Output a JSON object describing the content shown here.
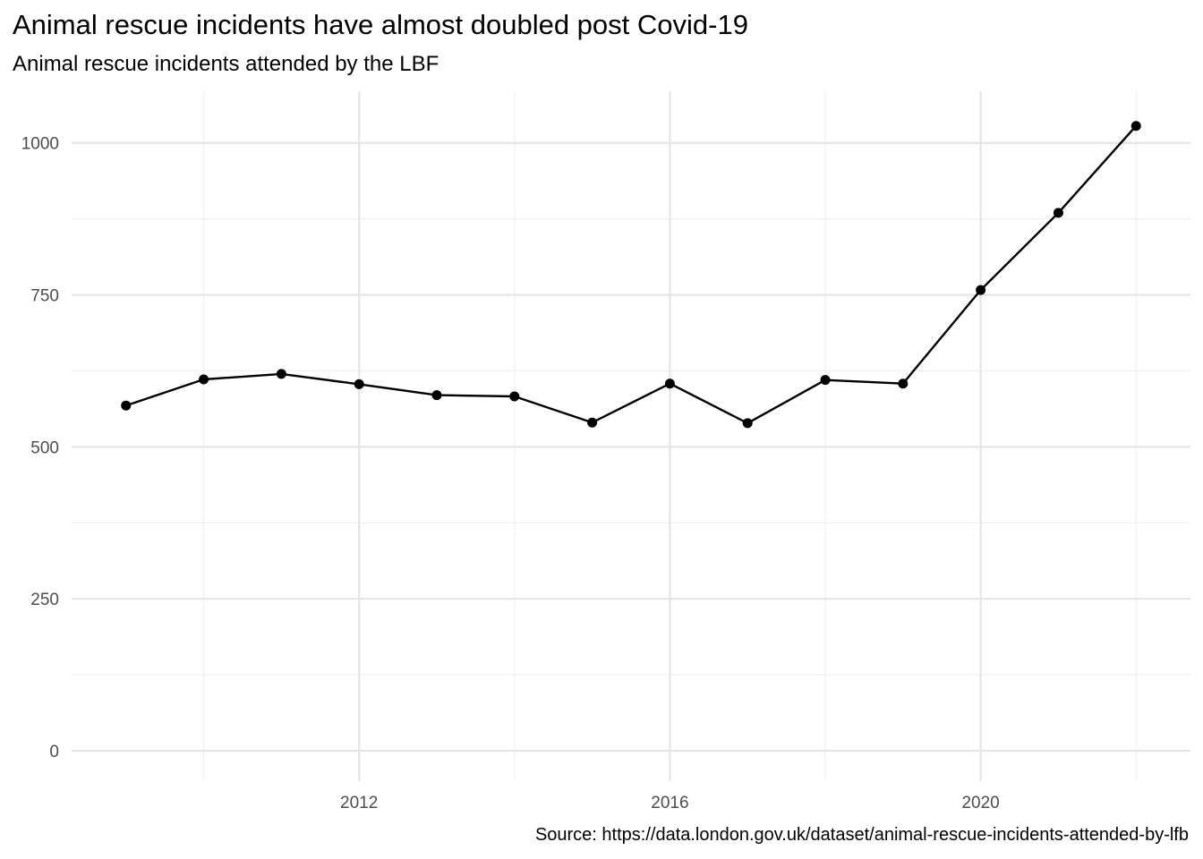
{
  "chart_data": {
    "type": "line",
    "title": "Animal rescue incidents have almost doubled post Covid-19",
    "subtitle": "Animal rescue incidents attended by the LBF",
    "caption": "Source: https://data.london.gov.uk/dataset/animal-rescue-incidents-attended-by-lfb",
    "xlabel": "",
    "ylabel": "",
    "x": [
      2009,
      2010,
      2011,
      2012,
      2013,
      2014,
      2015,
      2016,
      2017,
      2018,
      2019,
      2020,
      2021,
      2022
    ],
    "values": [
      568,
      611,
      620,
      603,
      585,
      583,
      540,
      604,
      539,
      610,
      604,
      758,
      885,
      1028
    ],
    "xlim": [
      2008.3,
      2022.7
    ],
    "ylim": [
      -50,
      1085
    ],
    "x_ticks": [
      2012,
      2016,
      2020
    ],
    "x_minor_ticks": [
      2010,
      2014,
      2018,
      2022
    ],
    "y_ticks": [
      0,
      250,
      500,
      750,
      1000
    ],
    "y_minor_ticks": [
      125,
      375,
      625,
      875
    ],
    "grid": true,
    "colors": {
      "line": "#000000",
      "point": "#000000",
      "grid_major": "#e5e5e5",
      "grid_minor": "#f0f0f0",
      "tick_label": "#4d4d4d"
    }
  }
}
